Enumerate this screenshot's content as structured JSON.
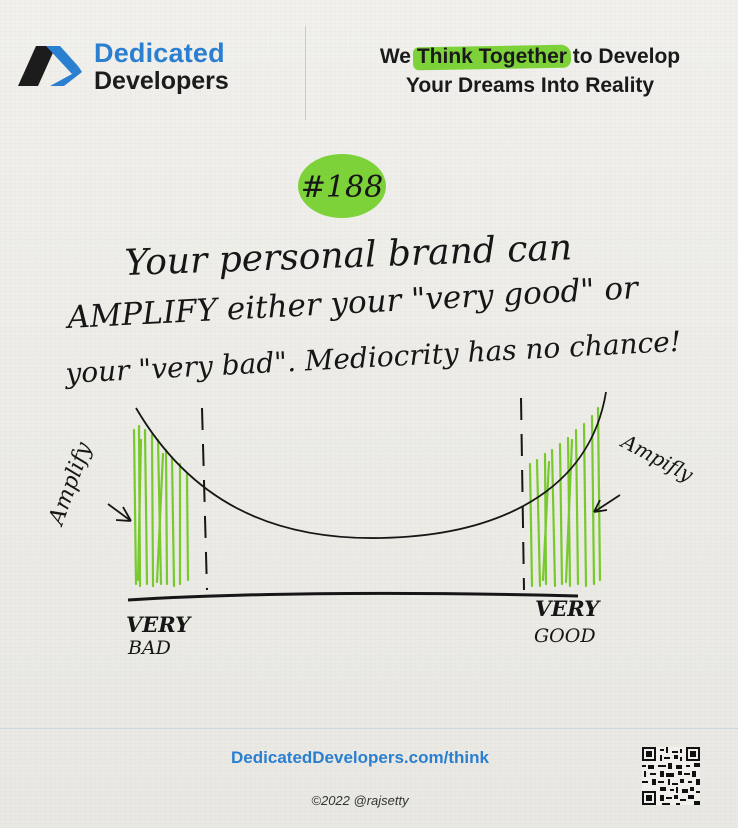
{
  "header": {
    "brand_line1": "Dedicated",
    "brand_line2": "Developers",
    "tagline_pre": "We ",
    "tagline_highlight": "Think Together",
    "tagline_post": " to Develop",
    "tagline_line2": "Your Dreams Into Reality"
  },
  "sketch": {
    "number": "#188",
    "text_line1": "Your personal brand can",
    "text_line2": "AMPLIFY either your \"very good\" or",
    "text_line3": "your \"very bad\". Mediocrity has no chance!",
    "label_left_arrow": "Amplify",
    "label_right_arrow": "Ampifly",
    "axis_left_1": "VERY",
    "axis_left_2": "BAD",
    "axis_right_1": "VERY",
    "axis_right_2": "GOOD"
  },
  "footer": {
    "link": "DedicatedDevelopers.com/think",
    "copyright": "©2022 @rajsetty"
  },
  "colors": {
    "brand_blue": "#2a7fd0",
    "highlight_green": "#7dd23a",
    "ink": "#161616"
  },
  "icons": {
    "logo": "dedicated-developers-logo",
    "qr": "qr-code"
  }
}
